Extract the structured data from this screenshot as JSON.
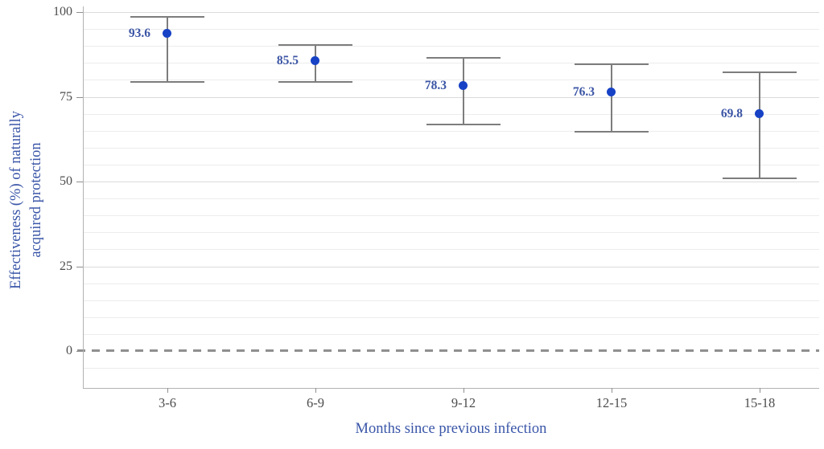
{
  "chart_data": {
    "type": "scatter",
    "subtype": "point-estimates-with-error-bars",
    "title": "",
    "xlabel": "Months since previous infection",
    "ylabel": "Effectiveness (%) of naturally acquired protection",
    "ylabel_lines": [
      "Effectiveness (%) of naturally",
      "acquired protection"
    ],
    "categories": [
      "3-6",
      "6-9",
      "9-12",
      "12-15",
      "15-18"
    ],
    "series": [
      {
        "name": "Effectiveness (%) of naturally acquired protection",
        "values": [
          93.6,
          85.5,
          78.3,
          76.3,
          69.8
        ],
        "ci_low": [
          79.4,
          79.4,
          66.9,
          64.6,
          50.9
        ],
        "ci_high": [
          98.5,
          90.4,
          86.6,
          84.6,
          82.2
        ]
      }
    ],
    "value_labels": [
      "93.6",
      "85.5",
      "78.3",
      "76.3",
      "69.8"
    ],
    "yticks": [
      100,
      75,
      50,
      25,
      0
    ],
    "ylim": [
      -11,
      101
    ],
    "grid": "horizontal only; minor lines every 5, major lines every 25",
    "zero_line": "dashed gray horizontal line at y=0",
    "legend_position": "none"
  },
  "colors": {
    "point_blue": "#1742c6",
    "value_label_blue": "#3b55a5",
    "axis_title_blue": "#3a56a8",
    "error_bar_gray": "#7d7d7d",
    "tick_text_gray": "#4d4d4d",
    "axis_line_gray": "#b2b2b2",
    "grid_minor_gray": "#ececec",
    "grid_major_gray": "#dbdbdb",
    "zero_dash_gray": "#8f8f8f",
    "background": "#ffffff"
  }
}
